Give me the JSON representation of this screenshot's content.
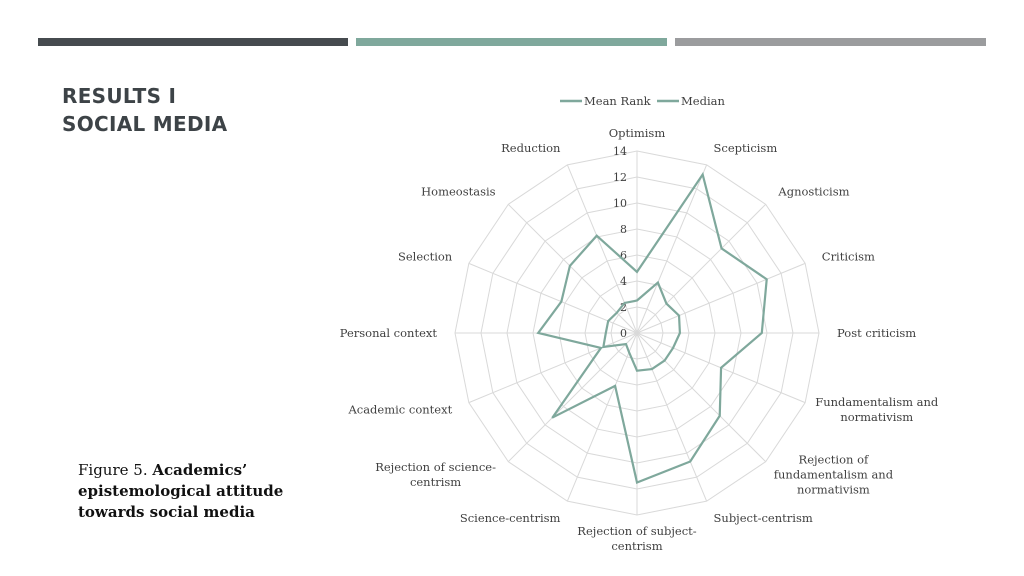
{
  "slide": {
    "title_line1": "RESULTS I",
    "title_line2": "SOCIAL MEDIA",
    "caption_prefix": "Figure 5.",
    "caption_bold": "Academics’ epistemological attitude towards social media"
  },
  "colors": {
    "bar_dark": "#464b4f",
    "bar_teal": "#7fa89c",
    "bar_gray": "#9b9c9e",
    "series": "#7fa89c",
    "grid": "#d9d9d9"
  },
  "chart_data": {
    "type": "radar",
    "title": "",
    "categories": [
      "Optimism",
      "Scepticism",
      "Agnosticism",
      "Criticism",
      "Post criticism",
      "Fundamentalism and normativism",
      "Rejection of fundamentalism and normativism",
      "Subject-centrism",
      "Rejection of subject-centrism",
      "Science-centrism",
      "Rejection of science-centrism",
      "Academic context",
      "Personal context",
      "Selection",
      "Homeostasis",
      "Reduction"
    ],
    "series": [
      {
        "name": "Mean Rank",
        "values": [
          4.7,
          13.2,
          9.2,
          10.8,
          9.6,
          7.0,
          9.0,
          10.7,
          11.5,
          4.4,
          9.2,
          3.0,
          7.6,
          6.3,
          7.3,
          8.1
        ]
      },
      {
        "name": "Median",
        "values": [
          2.5,
          4.2,
          3.2,
          3.5,
          3.3,
          3.0,
          3.0,
          3.0,
          2.9,
          1.6,
          1.2,
          2.8,
          2.4,
          2.4,
          2.2,
          2.5
        ]
      }
    ],
    "rlim": [
      0,
      14
    ],
    "ticks": [
      0,
      2,
      4,
      6,
      8,
      10,
      12,
      14
    ],
    "legend_position": "top",
    "grid": true
  }
}
